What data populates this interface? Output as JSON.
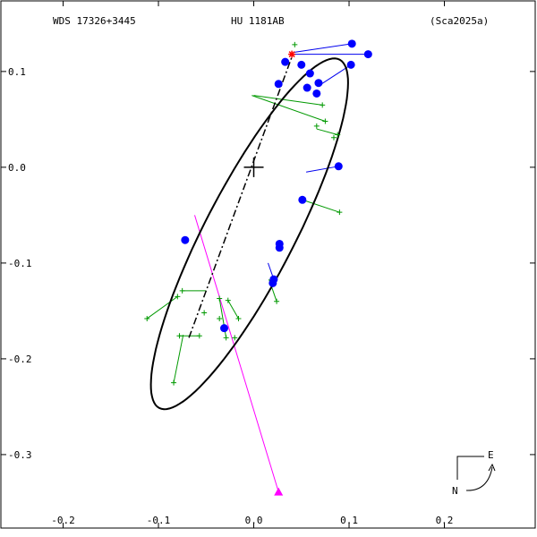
{
  "header": {
    "left": "WDS 17326+3445",
    "center": "HU 1181AB",
    "right": "(Sca2025a)"
  },
  "compass": {
    "east": "E",
    "north": "N"
  },
  "chart_data": {
    "type": "scatter",
    "title": "HU 1181AB",
    "xlim": [
      -0.2653,
      0.2953
    ],
    "ylim": [
      -0.3767,
      0.1737
    ],
    "x_ticks": [
      {
        "value": -0.2,
        "label": "-0.2"
      },
      {
        "value": -0.1,
        "label": "-0.1"
      },
      {
        "value": 0.0,
        "label": "0.0"
      },
      {
        "value": 0.1,
        "label": "0.1"
      },
      {
        "value": 0.2,
        "label": "0.2"
      }
    ],
    "y_ticks": [
      {
        "value": 0.1,
        "label": "0.1"
      },
      {
        "value": 0.0,
        "label": "0.0"
      },
      {
        "value": -0.1,
        "label": "-0.1"
      },
      {
        "value": -0.2,
        "label": "-0.2"
      },
      {
        "value": -0.3,
        "label": "-0.3"
      }
    ],
    "orbit_ellipse": {
      "center": [
        -0.0045,
        -0.0695
      ],
      "semi_major": 0.205,
      "semi_minor": 0.047,
      "angle_deg": 62.5,
      "color": "#000000"
    },
    "line_of_nodes": {
      "from": [
        -0.068,
        -0.178
      ],
      "to": [
        0.041,
        0.118
      ]
    },
    "primary": [
      0.0,
      0.0
    ],
    "periastron": [
      0.04,
      0.118
    ],
    "observations_blue": [
      [
        0.103,
        0.129
      ],
      [
        0.12,
        0.118
      ],
      [
        0.102,
        0.107
      ],
      [
        0.033,
        0.11
      ],
      [
        0.05,
        0.107
      ],
      [
        0.059,
        0.098
      ],
      [
        0.068,
        0.088
      ],
      [
        0.056,
        0.083
      ],
      [
        0.066,
        0.077
      ],
      [
        0.026,
        0.087
      ],
      [
        0.089,
        0.001
      ],
      [
        0.051,
        -0.034
      ],
      [
        -0.072,
        -0.076
      ],
      [
        0.027,
        -0.08
      ],
      [
        0.027,
        -0.084
      ],
      [
        0.021,
        -0.117
      ],
      [
        0.02,
        -0.121
      ],
      [
        -0.031,
        -0.168
      ]
    ],
    "residual_lines_blue": [
      [
        [
          0.103,
          0.129
        ],
        [
          0.042,
          0.12
        ]
      ],
      [
        [
          0.12,
          0.118
        ],
        [
          0.042,
          0.118
        ]
      ],
      [
        [
          0.102,
          0.107
        ],
        [
          0.068,
          0.085
        ]
      ],
      [
        [
          0.089,
          0.001
        ],
        [
          0.055,
          -0.005
        ]
      ],
      [
        [
          0.021,
          -0.117
        ],
        [
          0.015,
          -0.1
        ]
      ]
    ],
    "observations_green": [
      [
        0.043,
        0.128
      ],
      [
        0.072,
        0.065
      ],
      [
        0.075,
        0.048
      ],
      [
        0.066,
        0.043
      ],
      [
        0.088,
        0.034
      ],
      [
        0.084,
        0.031
      ],
      [
        0.09,
        -0.047
      ],
      [
        -0.08,
        -0.135
      ],
      [
        -0.075,
        -0.129
      ],
      [
        -0.084,
        -0.225
      ],
      [
        -0.112,
        -0.158
      ],
      [
        -0.078,
        -0.176
      ],
      [
        -0.057,
        -0.176
      ],
      [
        -0.036,
        -0.137
      ],
      [
        -0.027,
        -0.139
      ],
      [
        -0.036,
        -0.158
      ],
      [
        -0.029,
        -0.178
      ],
      [
        -0.02,
        -0.178
      ],
      [
        -0.016,
        -0.158
      ],
      [
        -0.052,
        -0.152
      ],
      [
        0.024,
        -0.14
      ]
    ],
    "residual_lines_green": [
      [
        [
          0.072,
          0.065
        ],
        [
          0.0,
          0.075
        ]
      ],
      [
        [
          0.075,
          0.048
        ],
        [
          -0.002,
          0.075
        ]
      ],
      [
        [
          0.088,
          0.034
        ],
        [
          0.066,
          0.04
        ]
      ],
      [
        [
          0.09,
          -0.047
        ],
        [
          0.051,
          -0.034
        ]
      ],
      [
        [
          -0.075,
          -0.129
        ],
        [
          -0.05,
          -0.129
        ]
      ],
      [
        [
          -0.084,
          -0.225
        ],
        [
          -0.074,
          -0.175
        ]
      ],
      [
        [
          -0.112,
          -0.158
        ],
        [
          -0.08,
          -0.135
        ]
      ],
      [
        [
          -0.078,
          -0.176
        ],
        [
          -0.057,
          -0.176
        ]
      ],
      [
        [
          -0.036,
          -0.137
        ],
        [
          -0.029,
          -0.178
        ]
      ],
      [
        [
          -0.027,
          -0.139
        ],
        [
          -0.016,
          -0.158
        ]
      ],
      [
        [
          0.024,
          -0.14
        ],
        [
          0.016,
          -0.117
        ]
      ]
    ],
    "magenta_line": {
      "from": [
        -0.062,
        -0.05
      ],
      "to": [
        0.026,
        -0.339
      ],
      "color": "#ff00ff"
    },
    "magenta_marker": [
      0.026,
      -0.339
    ]
  }
}
